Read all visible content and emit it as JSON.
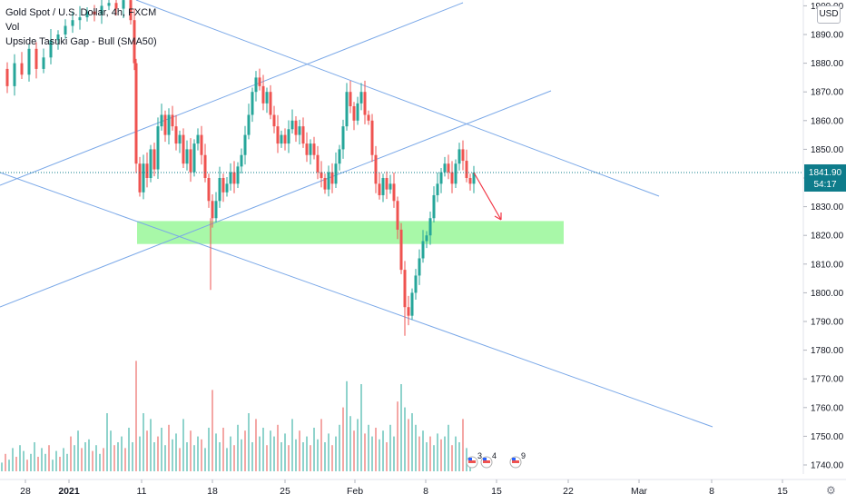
{
  "header": {
    "title": "Gold Spot / U.S. Dollar, 4h, FXCM",
    "indicator_vol": "Vol",
    "indicator_pattern": "Upside Tasuki Gap - Bull (SMA50)"
  },
  "currency_button": "USD",
  "price_tag": {
    "value": "1841.90",
    "countdown": "54:17"
  },
  "event_badges": [
    {
      "label": "3"
    },
    {
      "label": "4"
    },
    {
      "label": "9"
    }
  ],
  "colors": {
    "up": "#26a69a",
    "down": "#ef5350",
    "vol_up": "#8fd3cc",
    "vol_down": "#f4a7a5",
    "trend": "#7aa8e8",
    "zone": "#9ef79e",
    "arrow": "#f23645",
    "price_line": "#0e7c8b",
    "axis_text": "#131722"
  },
  "chart_data": {
    "type": "candlestick",
    "title": "Gold Spot / U.S. Dollar, 4h, FXCM",
    "ylim": [
      1738,
      1903
    ],
    "y_ticks": [
      1740,
      1750,
      1760,
      1770,
      1780,
      1790,
      1800,
      1810,
      1820,
      1830,
      1840,
      1850,
      1860,
      1870,
      1880,
      1890,
      1900
    ],
    "y_tick_labels": [
      "1740.00",
      "1750.00",
      "1760.00",
      "1770.00",
      "1780.00",
      "1790.00",
      "1800.00",
      "1810.00",
      "1820.00",
      "1830.00",
      "1840.00",
      "1850.00",
      "1860.00",
      "1870.00",
      "1880.00",
      "1890.00",
      "1900.00"
    ],
    "x_ticks": [
      {
        "label": "28",
        "x": 28
      },
      {
        "label": "2021",
        "x": 76
      },
      {
        "label": "11",
        "x": 156
      },
      {
        "label": "18",
        "x": 234
      },
      {
        "label": "25",
        "x": 314
      },
      {
        "label": "Feb",
        "x": 391
      },
      {
        "label": "8",
        "x": 469
      },
      {
        "label": "15",
        "x": 547
      },
      {
        "label": "22",
        "x": 626
      },
      {
        "label": "Mar",
        "x": 704
      },
      {
        "label": "8",
        "x": 784
      },
      {
        "label": "15",
        "x": 862
      }
    ],
    "close_path": [
      [
        0,
        1878
      ],
      [
        8,
        1872
      ],
      [
        16,
        1880
      ],
      [
        24,
        1876
      ],
      [
        32,
        1885
      ],
      [
        40,
        1878
      ],
      [
        48,
        1882
      ],
      [
        56,
        1888
      ],
      [
        64,
        1890
      ],
      [
        72,
        1893
      ],
      [
        80,
        1895
      ],
      [
        88,
        1896
      ],
      [
        96,
        1898
      ],
      [
        104,
        1897
      ],
      [
        112,
        1900
      ],
      [
        120,
        1901
      ],
      [
        128,
        1899
      ],
      [
        136,
        1902
      ],
      [
        144,
        1895
      ],
      [
        148,
        1880
      ],
      [
        150,
        1845
      ],
      [
        154,
        1835
      ],
      [
        158,
        1845
      ],
      [
        162,
        1840
      ],
      [
        166,
        1850
      ],
      [
        170,
        1843
      ],
      [
        174,
        1858
      ],
      [
        178,
        1862
      ],
      [
        182,
        1855
      ],
      [
        186,
        1862
      ],
      [
        190,
        1858
      ],
      [
        194,
        1852
      ],
      [
        198,
        1855
      ],
      [
        202,
        1845
      ],
      [
        206,
        1850
      ],
      [
        210,
        1842
      ],
      [
        214,
        1852
      ],
      [
        218,
        1855
      ],
      [
        222,
        1848
      ],
      [
        226,
        1840
      ],
      [
        230,
        1832
      ],
      [
        234,
        1826
      ],
      [
        238,
        1832
      ],
      [
        242,
        1840
      ],
      [
        246,
        1835
      ],
      [
        250,
        1838
      ],
      [
        254,
        1842
      ],
      [
        258,
        1838
      ],
      [
        262,
        1844
      ],
      [
        266,
        1848
      ],
      [
        270,
        1855
      ],
      [
        274,
        1862
      ],
      [
        278,
        1870
      ],
      [
        282,
        1875
      ],
      [
        286,
        1872
      ],
      [
        290,
        1866
      ],
      [
        294,
        1870
      ],
      [
        298,
        1862
      ],
      [
        302,
        1858
      ],
      [
        306,
        1852
      ],
      [
        310,
        1855
      ],
      [
        314,
        1852
      ],
      [
        318,
        1857
      ],
      [
        322,
        1860
      ],
      [
        326,
        1855
      ],
      [
        330,
        1858
      ],
      [
        334,
        1852
      ],
      [
        338,
        1848
      ],
      [
        342,
        1852
      ],
      [
        346,
        1848
      ],
      [
        350,
        1842
      ],
      [
        354,
        1840
      ],
      [
        358,
        1836
      ],
      [
        362,
        1842
      ],
      [
        366,
        1838
      ],
      [
        370,
        1845
      ],
      [
        374,
        1850
      ],
      [
        378,
        1858
      ],
      [
        382,
        1870
      ],
      [
        386,
        1865
      ],
      [
        390,
        1860
      ],
      [
        394,
        1866
      ],
      [
        398,
        1870
      ],
      [
        402,
        1862
      ],
      [
        406,
        1860
      ],
      [
        410,
        1848
      ],
      [
        414,
        1838
      ],
      [
        418,
        1834
      ],
      [
        422,
        1840
      ],
      [
        426,
        1836
      ],
      [
        430,
        1838
      ],
      [
        434,
        1832
      ],
      [
        438,
        1822
      ],
      [
        442,
        1808
      ],
      [
        446,
        1795
      ],
      [
        450,
        1792
      ],
      [
        454,
        1800
      ],
      [
        458,
        1806
      ],
      [
        462,
        1812
      ],
      [
        466,
        1818
      ],
      [
        470,
        1820
      ],
      [
        474,
        1826
      ],
      [
        478,
        1834
      ],
      [
        482,
        1838
      ],
      [
        486,
        1842
      ],
      [
        490,
        1845
      ],
      [
        494,
        1842
      ],
      [
        498,
        1838
      ],
      [
        502,
        1845
      ],
      [
        506,
        1850
      ],
      [
        510,
        1846
      ],
      [
        514,
        1840
      ],
      [
        518,
        1838
      ],
      [
        522,
        1841.9
      ]
    ],
    "volume": [
      [
        2,
        3
      ],
      [
        6,
        6
      ],
      [
        10,
        4
      ],
      [
        14,
        8
      ],
      [
        18,
        5
      ],
      [
        22,
        9
      ],
      [
        26,
        7
      ],
      [
        30,
        4
      ],
      [
        34,
        6
      ],
      [
        38,
        10
      ],
      [
        42,
        5
      ],
      [
        46,
        8
      ],
      [
        50,
        6
      ],
      [
        54,
        9
      ],
      [
        58,
        4
      ],
      [
        62,
        7
      ],
      [
        66,
        5
      ],
      [
        70,
        8
      ],
      [
        74,
        6
      ],
      [
        78,
        12
      ],
      [
        82,
        9
      ],
      [
        86,
        14
      ],
      [
        90,
        8
      ],
      [
        94,
        10
      ],
      [
        98,
        11
      ],
      [
        102,
        7
      ],
      [
        106,
        9
      ],
      [
        110,
        6
      ],
      [
        114,
        8
      ],
      [
        118,
        20
      ],
      [
        122,
        14
      ],
      [
        126,
        9
      ],
      [
        130,
        10
      ],
      [
        134,
        12
      ],
      [
        138,
        8
      ],
      [
        142,
        15
      ],
      [
        146,
        10
      ],
      [
        150,
        38
      ],
      [
        154,
        12
      ],
      [
        158,
        20
      ],
      [
        162,
        14
      ],
      [
        166,
        18
      ],
      [
        170,
        10
      ],
      [
        174,
        12
      ],
      [
        178,
        15
      ],
      [
        182,
        9
      ],
      [
        186,
        16
      ],
      [
        190,
        11
      ],
      [
        194,
        13
      ],
      [
        198,
        8
      ],
      [
        202,
        18
      ],
      [
        206,
        10
      ],
      [
        210,
        14
      ],
      [
        214,
        9
      ],
      [
        218,
        12
      ],
      [
        222,
        11
      ],
      [
        226,
        8
      ],
      [
        230,
        15
      ],
      [
        234,
        28
      ],
      [
        238,
        13
      ],
      [
        242,
        10
      ],
      [
        246,
        15
      ],
      [
        250,
        8
      ],
      [
        254,
        12
      ],
      [
        258,
        9
      ],
      [
        262,
        16
      ],
      [
        266,
        11
      ],
      [
        270,
        14
      ],
      [
        274,
        20
      ],
      [
        278,
        10
      ],
      [
        282,
        18
      ],
      [
        286,
        12
      ],
      [
        290,
        15
      ],
      [
        294,
        9
      ],
      [
        298,
        14
      ],
      [
        302,
        12
      ],
      [
        306,
        16
      ],
      [
        310,
        10
      ],
      [
        314,
        13
      ],
      [
        318,
        9
      ],
      [
        322,
        18
      ],
      [
        326,
        11
      ],
      [
        330,
        14
      ],
      [
        334,
        10
      ],
      [
        338,
        12
      ],
      [
        342,
        9
      ],
      [
        346,
        15
      ],
      [
        350,
        11
      ],
      [
        354,
        18
      ],
      [
        358,
        10
      ],
      [
        362,
        13
      ],
      [
        366,
        9
      ],
      [
        370,
        12
      ],
      [
        374,
        16
      ],
      [
        378,
        22
      ],
      [
        382,
        31
      ],
      [
        386,
        19
      ],
      [
        390,
        14
      ],
      [
        394,
        18
      ],
      [
        398,
        30
      ],
      [
        402,
        13
      ],
      [
        406,
        16
      ],
      [
        410,
        12
      ],
      [
        414,
        15
      ],
      [
        418,
        11
      ],
      [
        422,
        14
      ],
      [
        426,
        10
      ],
      [
        430,
        16
      ],
      [
        434,
        12
      ],
      [
        438,
        24
      ],
      [
        442,
        30
      ],
      [
        446,
        22
      ],
      [
        450,
        18
      ],
      [
        454,
        20
      ],
      [
        458,
        16
      ],
      [
        462,
        12
      ],
      [
        466,
        14
      ],
      [
        470,
        10
      ],
      [
        474,
        12
      ],
      [
        478,
        9
      ],
      [
        482,
        13
      ],
      [
        486,
        11
      ],
      [
        490,
        12
      ],
      [
        494,
        16
      ],
      [
        498,
        9
      ],
      [
        502,
        12
      ],
      [
        506,
        10
      ],
      [
        510,
        18
      ],
      [
        514,
        8
      ],
      [
        518,
        5
      ]
    ],
    "current_price": 1841.9
  }
}
